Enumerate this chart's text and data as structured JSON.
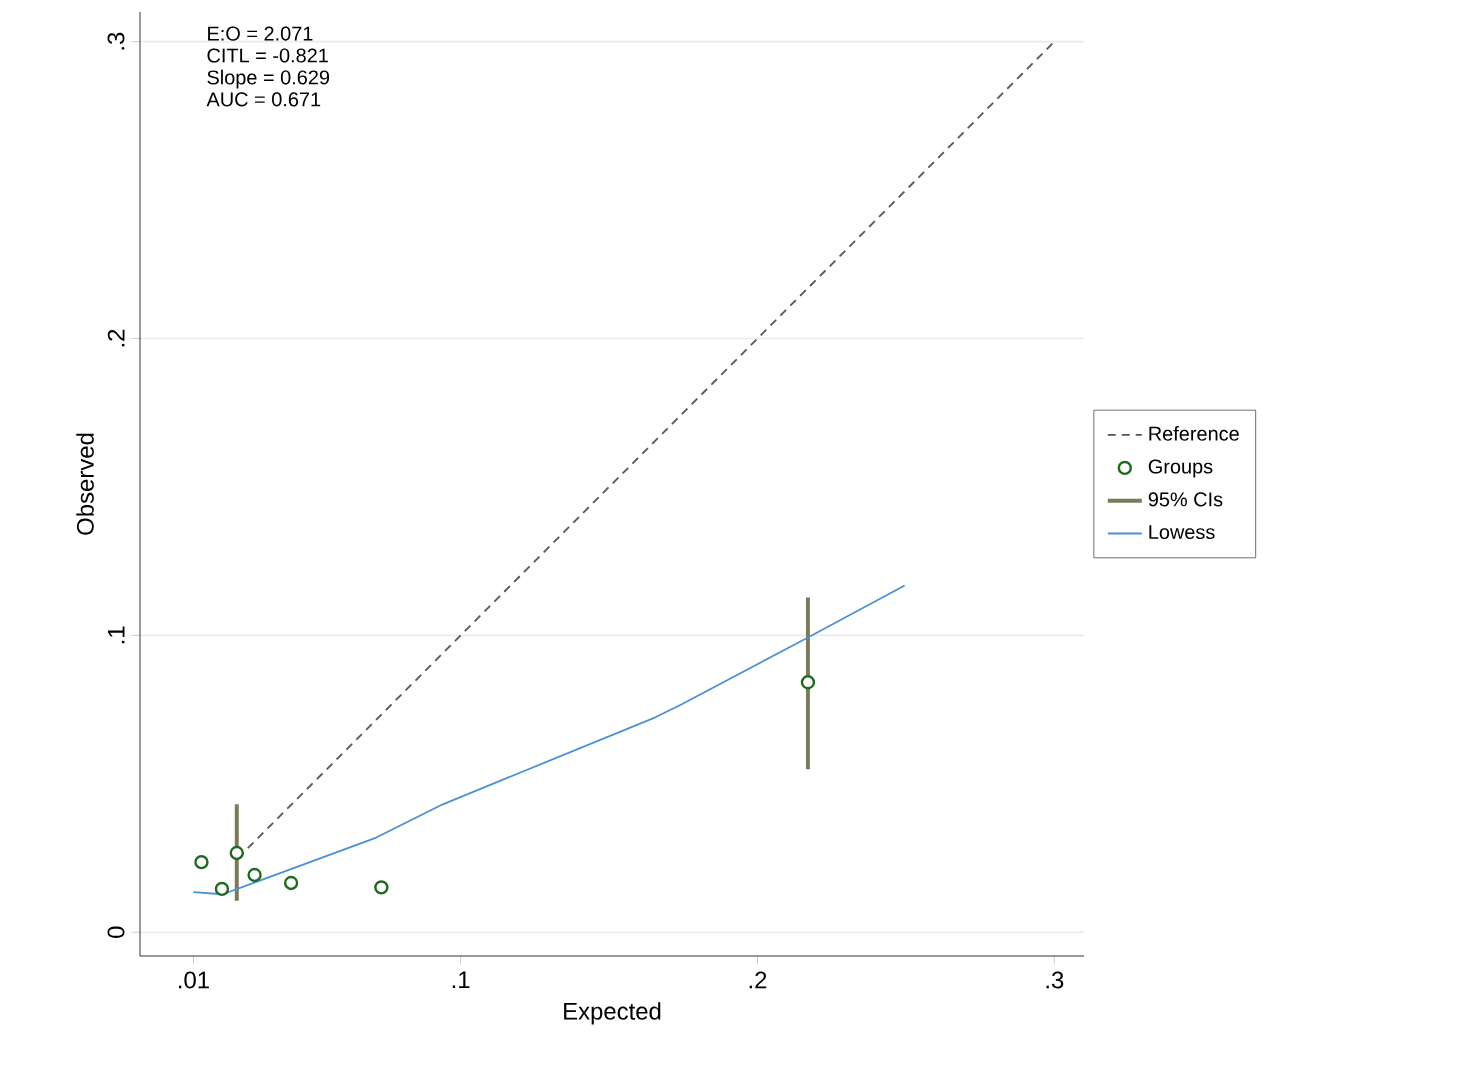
{
  "chart_data": {
    "type": "scatter",
    "xlabel": "Expected",
    "ylabel": "Observed",
    "xlim": [
      -0.008,
      0.31
    ],
    "ylim": [
      -0.008,
      0.31
    ],
    "xticks": [
      {
        "value": 0.01,
        "label": ".01"
      },
      {
        "value": 0.1,
        "label": ".1"
      },
      {
        "value": 0.2,
        "label": ".2"
      },
      {
        "value": 0.3,
        "label": ".3"
      }
    ],
    "yticks": [
      {
        "value": 0,
        "label": "0"
      },
      {
        "value": 0.1,
        "label": ".1"
      },
      {
        "value": 0.2,
        "label": ".2"
      },
      {
        "value": 0.3,
        "label": ".3"
      }
    ],
    "grid": "y",
    "legend": "right",
    "annotations": [
      "E:O = 2.071",
      "CITL = -0.821",
      "Slope = 0.629",
      "AUC = 0.671"
    ],
    "series": [
      {
        "name": "Reference",
        "type": "line",
        "line_style": "dashed",
        "color": "#555555",
        "x": [
          0.025,
          0.3
        ],
        "values": [
          0.025,
          0.3
        ]
      },
      {
        "name": "Groups",
        "marker": "circle",
        "color": "#1e6b1e",
        "x": [
          0.0127,
          0.0196,
          0.0246,
          0.0306,
          0.0429,
          0.0733,
          0.217
        ],
        "values": [
          0.0236,
          0.0146,
          0.0267,
          0.0193,
          0.0166,
          0.0151,
          0.0842
        ]
      },
      {
        "name": "95% CIs",
        "type": "bar",
        "color": "#7b7b5b",
        "x": [
          0.0246,
          0.217
        ],
        "base": [
          0.0106,
          0.0549
        ],
        "values": [
          0.0325,
          0.0579
        ]
      },
      {
        "name": "Lowess",
        "type": "line",
        "line_style": "solid",
        "color": "#4a90d9",
        "x": [
          0.01,
          0.0199,
          0.0716,
          0.094,
          0.1656,
          0.1745,
          0.217,
          0.2496
        ],
        "values": [
          0.0135,
          0.0128,
          0.0319,
          0.0431,
          0.0724,
          0.0768,
          0.0993,
          0.1168
        ]
      }
    ]
  }
}
